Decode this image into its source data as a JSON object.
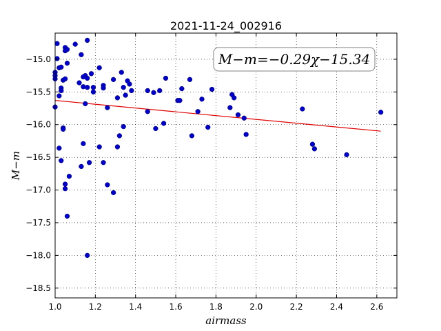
{
  "chart_data": {
    "type": "scatter",
    "title": "2021-11-24_002916",
    "xlabel": "airmass",
    "ylabel": "M−m",
    "xlim": [
      1.0,
      2.7
    ],
    "ylim": [
      -18.65,
      -14.6
    ],
    "grid": true,
    "x_ticks": [
      1.0,
      1.2,
      1.4,
      1.6,
      1.8,
      2.0,
      2.2,
      2.4,
      2.6
    ],
    "x_tick_labels": [
      "1.0",
      "1.2",
      "1.4",
      "1.6",
      "1.8",
      "2.0",
      "2.2",
      "2.4",
      "2.6"
    ],
    "y_ticks": [
      -15.0,
      -15.5,
      -16.0,
      -16.5,
      -17.0,
      -17.5,
      -18.0,
      -18.5
    ],
    "y_tick_labels": [
      "−15.0",
      "−15.5",
      "−16.0",
      "−16.5",
      "−17.0",
      "−17.5",
      "−18.0",
      "−18.5"
    ],
    "annotation": "M−m=−0.29χ−15.34",
    "annotation_position": "top-right",
    "fit_line": {
      "slope": -0.29,
      "intercept": -15.34,
      "x_range": [
        1.0,
        2.62
      ],
      "color": "#e00000"
    },
    "marker_color": "#0000cc",
    "points": [
      [
        1.01,
        -14.99
      ],
      [
        1.0,
        -15.2
      ],
      [
        1.0,
        -15.25
      ],
      [
        1.0,
        -15.3
      ],
      [
        1.0,
        -15.73
      ],
      [
        1.01,
        -14.76
      ],
      [
        1.02,
        -15.13
      ],
      [
        1.02,
        -15.56
      ],
      [
        1.03,
        -15.12
      ],
      [
        1.03,
        -15.44
      ],
      [
        1.03,
        -15.48
      ],
      [
        1.04,
        -15.32
      ],
      [
        1.04,
        -16.05
      ],
      [
        1.04,
        -16.07
      ],
      [
        1.02,
        -16.36
      ],
      [
        1.03,
        -16.55
      ],
      [
        1.05,
        -14.82
      ],
      [
        1.05,
        -14.87
      ],
      [
        1.06,
        -14.85
      ],
      [
        1.05,
        -15.3
      ],
      [
        1.05,
        -16.91
      ],
      [
        1.05,
        -16.98
      ],
      [
        1.06,
        -15.06
      ],
      [
        1.07,
        -16.79
      ],
      [
        1.06,
        -17.4
      ],
      [
        1.1,
        -14.77
      ],
      [
        1.13,
        -14.93
      ],
      [
        1.12,
        -15.36
      ],
      [
        1.14,
        -15.42
      ],
      [
        1.15,
        -15.25
      ],
      [
        1.14,
        -15.27
      ],
      [
        1.16,
        -15.29
      ],
      [
        1.16,
        -15.43
      ],
      [
        1.18,
        -15.22
      ],
      [
        1.19,
        -15.43
      ],
      [
        1.19,
        -15.5
      ],
      [
        1.15,
        -15.68
      ],
      [
        1.14,
        -16.29
      ],
      [
        1.13,
        -16.64
      ],
      [
        1.17,
        -16.58
      ],
      [
        1.16,
        -14.71
      ],
      [
        1.16,
        -18.0
      ],
      [
        1.22,
        -15.13
      ],
      [
        1.24,
        -15.4
      ],
      [
        1.24,
        -15.44
      ],
      [
        1.26,
        -15.74
      ],
      [
        1.22,
        -16.34
      ],
      [
        1.24,
        -16.58
      ],
      [
        1.26,
        -16.92
      ],
      [
        1.29,
        -15.31
      ],
      [
        1.31,
        -15.59
      ],
      [
        1.33,
        -15.2
      ],
      [
        1.34,
        -15.43
      ],
      [
        1.35,
        -15.55
      ],
      [
        1.36,
        -15.33
      ],
      [
        1.37,
        -15.38
      ],
      [
        1.38,
        -15.48
      ],
      [
        1.34,
        -16.03
      ],
      [
        1.32,
        -16.17
      ],
      [
        1.31,
        -16.34
      ],
      [
        1.29,
        -17.04
      ],
      [
        1.46,
        -15.48
      ],
      [
        1.46,
        -15.8
      ],
      [
        1.49,
        -15.51
      ],
      [
        1.5,
        -16.06
      ],
      [
        1.52,
        -15.48
      ],
      [
        1.55,
        -15.29
      ],
      [
        1.54,
        -15.98
      ],
      [
        1.61,
        -15.63
      ],
      [
        1.62,
        -15.63
      ],
      [
        1.63,
        -15.45
      ],
      [
        1.67,
        -15.31
      ],
      [
        1.68,
        -16.17
      ],
      [
        1.71,
        -15.8
      ],
      [
        1.73,
        -15.61
      ],
      [
        1.76,
        -16.04
      ],
      [
        1.78,
        -15.46
      ],
      [
        1.87,
        -15.74
      ],
      [
        1.88,
        -15.54
      ],
      [
        1.89,
        -15.59
      ],
      [
        1.91,
        -15.85
      ],
      [
        1.94,
        -15.9
      ],
      [
        1.95,
        -16.15
      ],
      [
        2.23,
        -15.76
      ],
      [
        2.28,
        -16.3
      ],
      [
        2.29,
        -16.37
      ],
      [
        2.45,
        -16.46
      ],
      [
        2.62,
        -15.81
      ]
    ]
  }
}
